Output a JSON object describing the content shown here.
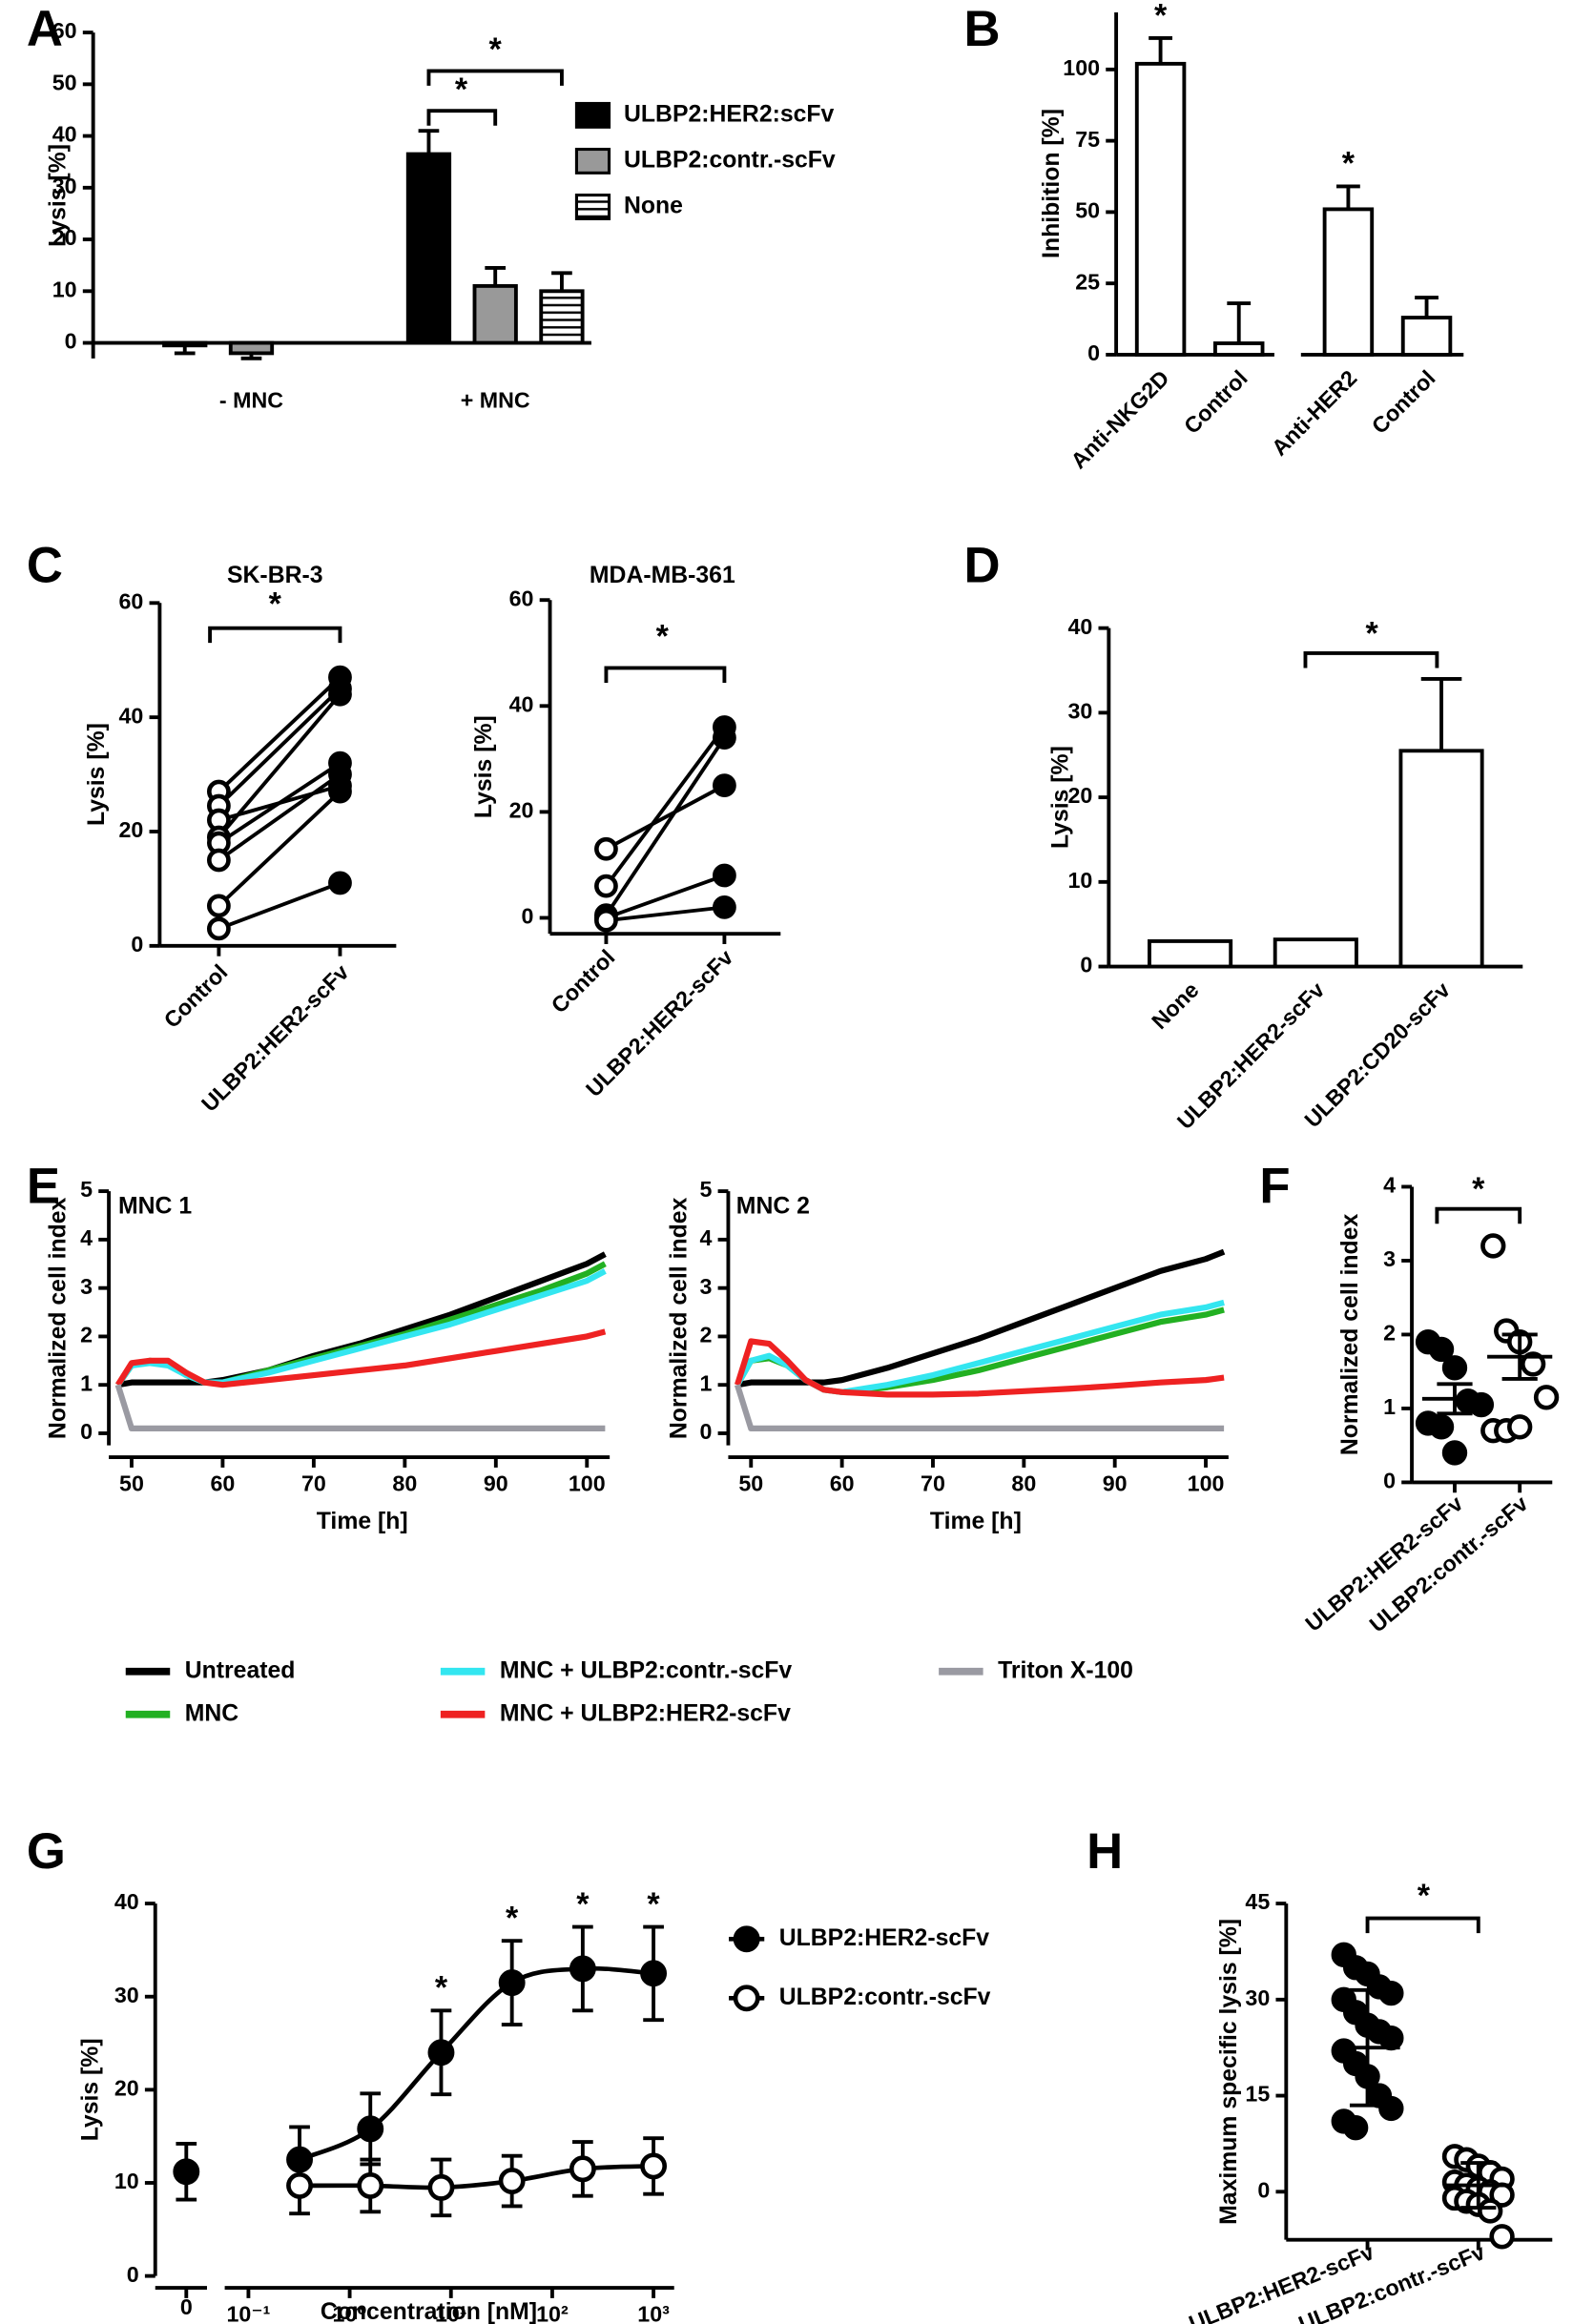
{
  "chart_data": [
    {
      "type": "bar",
      "panel": "A",
      "y_label": "Lysis [%]",
      "categories": [
        "- MNC",
        "+ MNC"
      ],
      "series": [
        {
          "name": "ULBP2:HER2:scFv",
          "color": "#000000",
          "values": [
            -0.5,
            36.5
          ],
          "errors": [
            1.5,
            4.5
          ]
        },
        {
          "name": "ULBP2:contr.-scFv",
          "color": "#999999",
          "values": [
            -2,
            11
          ],
          "errors": [
            1,
            3.5
          ]
        },
        {
          "name": "None",
          "color": "#ffffff",
          "pattern": "horizontal-lines",
          "values": [
            null,
            10
          ],
          "errors": [
            null,
            3.5
          ]
        }
      ],
      "ylim": [
        -3,
        60
      ],
      "yticks": [
        0,
        10,
        20,
        30,
        40,
        50,
        60
      ],
      "legend": "right",
      "annotations": [
        "*",
        "*"
      ]
    },
    {
      "type": "bar",
      "panel": "B",
      "y_label": "Inhibition [%]",
      "categories": [
        "Anti-NKG2D",
        "Control",
        "Anti-HER2",
        "Control"
      ],
      "values": [
        102,
        4,
        51,
        13
      ],
      "errors": [
        9,
        14,
        8,
        7
      ],
      "color": "#ffffff",
      "ylim": [
        0,
        120
      ],
      "yticks": [
        0,
        25,
        50,
        75,
        100
      ],
      "annotations": [
        "*",
        "*"
      ]
    },
    {
      "type": "paired",
      "panel": "C",
      "title": "SK-BR-3",
      "y_label": "Lysis [%]",
      "categories": [
        "Control",
        "ULBP2:HER2-scFv"
      ],
      "values": [
        [
          27,
          47
        ],
        [
          24.5,
          45
        ],
        [
          22,
          28
        ],
        [
          19,
          44
        ],
        [
          18,
          32
        ],
        [
          15,
          30
        ],
        [
          7,
          27
        ],
        [
          3,
          11
        ]
      ],
      "markers": [
        "open",
        "filled"
      ],
      "color": "#000000",
      "ylim": [
        0,
        60
      ],
      "yticks": [
        0,
        20,
        40,
        60
      ],
      "annotations": [
        "*"
      ]
    },
    {
      "type": "paired",
      "title": "MDA-MB-361",
      "y_label": "Lysis [%]",
      "categories": [
        "Control",
        "ULBP2:HER2-scFv"
      ],
      "values": [
        [
          13,
          25
        ],
        [
          6,
          36
        ],
        [
          0.5,
          34
        ],
        [
          0,
          8
        ],
        [
          -0.5,
          2
        ]
      ],
      "markers": [
        "open",
        "filled"
      ],
      "color": "#000000",
      "ylim": [
        -3,
        60
      ],
      "yticks": [
        0,
        20,
        40,
        60
      ],
      "annotations": [
        "*"
      ]
    },
    {
      "type": "bar",
      "panel": "D",
      "y_label": "Lysis [%]",
      "categories": [
        "None",
        "ULBP2:HER2-scFv",
        "ULBP2:CD20-scFv"
      ],
      "values": [
        3,
        3.2,
        25.5
      ],
      "errors": [
        null,
        null,
        8.5
      ],
      "color": "#ffffff",
      "ylim": [
        0,
        40
      ],
      "yticks": [
        0,
        10,
        20,
        30,
        40
      ],
      "annotations": [
        "*"
      ]
    },
    {
      "type": "line",
      "panel": "E",
      "title": "MNC 1",
      "x_label": "Time [h]",
      "y_label": "Normalized cell index",
      "x": [
        48.5,
        50,
        52,
        54,
        56,
        58,
        60,
        65,
        70,
        75,
        80,
        85,
        90,
        95,
        100,
        102
      ],
      "xlim": [
        47.5,
        102.5
      ],
      "xticks": [
        50,
        60,
        70,
        80,
        90,
        100
      ],
      "ylim": [
        -0.25,
        5
      ],
      "yticks": [
        0,
        1,
        2,
        3,
        4,
        5
      ],
      "legend": "bottom",
      "series": [
        {
          "name": "Untreated",
          "color": "#000000",
          "values": [
            1,
            1.05,
            1.05,
            1.05,
            1.05,
            1.05,
            1.1,
            1.3,
            1.6,
            1.85,
            2.15,
            2.45,
            2.8,
            3.15,
            3.5,
            3.7
          ]
        },
        {
          "name": "MNC",
          "color": "#22b022",
          "values": [
            1,
            1.4,
            1.5,
            1.45,
            1.2,
            1.05,
            1.05,
            1.3,
            1.55,
            1.8,
            2.05,
            2.35,
            2.65,
            2.95,
            3.3,
            3.5
          ]
        },
        {
          "name": "MNC + ULBP2:contr.-scFv",
          "color": "#33e6f0",
          "values": [
            1,
            1.4,
            1.45,
            1.4,
            1.2,
            1.05,
            1.05,
            1.25,
            1.5,
            1.75,
            2,
            2.25,
            2.55,
            2.85,
            3.15,
            3.35
          ]
        },
        {
          "name": "MNC + ULBP2:HER2-scFv",
          "color": "#ee2222",
          "values": [
            1,
            1.45,
            1.5,
            1.5,
            1.25,
            1.05,
            1,
            1.1,
            1.2,
            1.3,
            1.4,
            1.55,
            1.7,
            1.85,
            2,
            2.1
          ]
        },
        {
          "name": "Triton X-100",
          "color": "#9a9aa2",
          "values": [
            1,
            0.1,
            0.1,
            0.1,
            0.1,
            0.1,
            0.1,
            0.1,
            0.1,
            0.1,
            0.1,
            0.1,
            0.1,
            0.1,
            0.1,
            0.1
          ]
        }
      ]
    },
    {
      "type": "line",
      "title": "MNC 2",
      "x_label": "Time [h]",
      "y_label": "Normalized cell index",
      "x": [
        48.5,
        50,
        52,
        54,
        56,
        58,
        60,
        65,
        70,
        75,
        80,
        85,
        90,
        95,
        100,
        102
      ],
      "xlim": [
        47.5,
        102.5
      ],
      "xticks": [
        50,
        60,
        70,
        80,
        90,
        100
      ],
      "ylim": [
        -0.25,
        5
      ],
      "yticks": [
        0,
        1,
        2,
        3,
        4,
        5
      ],
      "series": [
        {
          "color": "#000000",
          "values": [
            1,
            1.05,
            1.05,
            1.05,
            1.05,
            1.05,
            1.1,
            1.35,
            1.65,
            1.95,
            2.3,
            2.65,
            3,
            3.35,
            3.6,
            3.75
          ]
        },
        {
          "color": "#22b022",
          "values": [
            1,
            1.5,
            1.55,
            1.4,
            1.1,
            0.9,
            0.85,
            0.95,
            1.1,
            1.3,
            1.55,
            1.8,
            2.05,
            2.3,
            2.45,
            2.55
          ]
        },
        {
          "color": "#33e6f0",
          "values": [
            1,
            1.5,
            1.6,
            1.4,
            1.1,
            0.9,
            0.85,
            1,
            1.2,
            1.45,
            1.7,
            1.95,
            2.2,
            2.45,
            2.6,
            2.7
          ]
        },
        {
          "color": "#ee2222",
          "values": [
            1,
            1.9,
            1.85,
            1.5,
            1.1,
            0.9,
            0.85,
            0.8,
            0.8,
            0.82,
            0.87,
            0.92,
            0.98,
            1.05,
            1.1,
            1.15
          ]
        },
        {
          "color": "#9a9aa2",
          "values": [
            1,
            0.1,
            0.1,
            0.1,
            0.1,
            0.1,
            0.1,
            0.1,
            0.1,
            0.1,
            0.1,
            0.1,
            0.1,
            0.1,
            0.1,
            0.1
          ]
        }
      ]
    },
    {
      "type": "dot",
      "panel": "F",
      "y_label": "Normalized cell index",
      "categories": [
        "ULBP2:HER2-scFv",
        "ULBP2:contr.-scFv"
      ],
      "values": [
        [
          1.9,
          1.8,
          1.55,
          1.1,
          1.05,
          0.8,
          0.75,
          0.4
        ],
        [
          3.2,
          2.05,
          1.9,
          1.6,
          1.15,
          0.7,
          0.7,
          0.75
        ]
      ],
      "means": [
        1.13,
        1.7
      ],
      "errors": [
        0.2,
        0.3
      ],
      "markers": [
        "filled",
        "open"
      ],
      "color": "#000000",
      "ylim": [
        0,
        4
      ],
      "yticks": [
        0,
        1,
        2,
        3,
        4
      ],
      "annotations": [
        "*"
      ]
    },
    {
      "type": "line",
      "panel": "G",
      "x_label": "Concentration [nM]",
      "y_label": "Lysis [%]",
      "xscale": "log",
      "x": [
        0.32,
        1.6,
        8,
        40,
        200,
        1000
      ],
      "xlim": [
        0.05,
        1500
      ],
      "xticks": [
        {
          "value": 0.1,
          "label": "10⁻¹"
        },
        {
          "value": 1,
          "label": "10⁰"
        },
        {
          "value": 10,
          "label": "10¹"
        },
        {
          "value": 100,
          "label": "10²"
        },
        {
          "value": 1000,
          "label": "10³"
        }
      ],
      "zero_tick": 0,
      "ylim": [
        0,
        40
      ],
      "yticks": [
        0,
        10,
        20,
        30,
        40
      ],
      "legend": "right",
      "series": [
        {
          "name": "ULBP2:HER2-scFv",
          "color": "#000000",
          "marker": "filled",
          "values": [
            12.5,
            15.8,
            24,
            31.5,
            33,
            32.5
          ],
          "errors": [
            3.5,
            3.8,
            4.5,
            4.5,
            4.5,
            5
          ],
          "zero_value": 11.2,
          "zero_error": 3
        },
        {
          "name": "ULBP2:contr.-scFv",
          "color": "#000000",
          "marker": "open",
          "values": [
            9.7,
            9.7,
            9.5,
            10.2,
            11.5,
            11.8
          ],
          "errors": [
            3,
            2.8,
            3,
            2.7,
            2.9,
            3
          ]
        }
      ],
      "annotations": [
        "*",
        "*",
        "*",
        "*"
      ]
    },
    {
      "type": "dot",
      "panel": "H",
      "y_label": "Maximum specific lysis [%]",
      "categories": [
        "ULBP2:HER2-scFv",
        "ULBP2:contr.-scFv"
      ],
      "values": [
        [
          37,
          35,
          34,
          32,
          31,
          30,
          28,
          26,
          25,
          24,
          22,
          20,
          18,
          15,
          13,
          11,
          10
        ],
        [
          5.5,
          5,
          4,
          3,
          2,
          1.5,
          1,
          0.5,
          0,
          -0.5,
          -1,
          -1.5,
          -2,
          -3,
          -7
        ]
      ],
      "means": [
        22.5,
        1
      ],
      "errors": [
        9,
        3.5
      ],
      "markers": [
        "filled",
        "open"
      ],
      "color": "#000000",
      "ylim": [
        -7.5,
        45
      ],
      "yticks": [
        0,
        15,
        30,
        45
      ],
      "annotations": [
        "*"
      ]
    }
  ]
}
